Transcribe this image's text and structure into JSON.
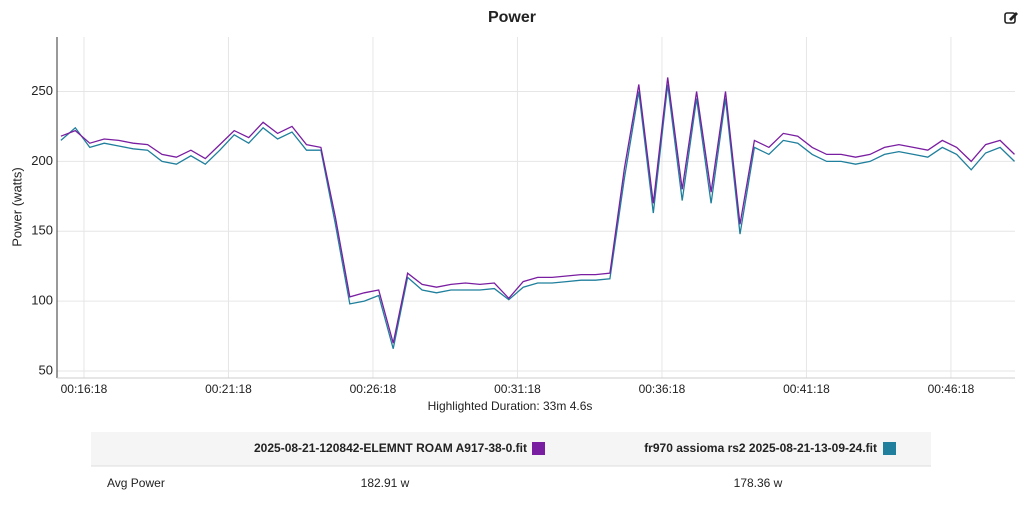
{
  "chart_data": {
    "type": "line",
    "title": "Power",
    "ylabel": "Power (watts)",
    "x_note": "Highlighted Duration: 33m 4.6s",
    "x": [
      "00:15:30",
      "00:16:00",
      "00:16:30",
      "00:17:00",
      "00:17:30",
      "00:18:00",
      "00:18:30",
      "00:19:00",
      "00:19:30",
      "00:20:00",
      "00:20:30",
      "00:21:00",
      "00:21:30",
      "00:22:00",
      "00:22:30",
      "00:23:00",
      "00:23:30",
      "00:24:00",
      "00:24:30",
      "00:25:00",
      "00:25:30",
      "00:26:00",
      "00:26:30",
      "00:27:00",
      "00:27:30",
      "00:28:00",
      "00:28:30",
      "00:29:00",
      "00:29:30",
      "00:30:00",
      "00:30:30",
      "00:31:00",
      "00:31:30",
      "00:32:00",
      "00:32:30",
      "00:33:00",
      "00:33:30",
      "00:34:00",
      "00:34:30",
      "00:35:00",
      "00:35:30",
      "00:36:00",
      "00:36:30",
      "00:37:00",
      "00:37:30",
      "00:38:00",
      "00:38:30",
      "00:39:00",
      "00:39:30",
      "00:40:00",
      "00:40:30",
      "00:41:00",
      "00:41:30",
      "00:42:00",
      "00:42:30",
      "00:43:00",
      "00:43:30",
      "00:44:00",
      "00:44:30",
      "00:45:00",
      "00:45:30",
      "00:46:00",
      "00:46:30",
      "00:47:00",
      "00:47:30",
      "00:48:00",
      "00:48:30"
    ],
    "series": [
      {
        "name": "2025-08-21-120842-ELEMNT ROAM A917-38-0.fit",
        "color": "#7a1ea1",
        "values": [
          218,
          222,
          213,
          216,
          215,
          213,
          212,
          205,
          203,
          208,
          202,
          212,
          222,
          217,
          228,
          220,
          225,
          212,
          210,
          160,
          103,
          106,
          108,
          70,
          120,
          112,
          110,
          112,
          113,
          112,
          113,
          102,
          114,
          117,
          117,
          118,
          119,
          119,
          120,
          195,
          255,
          170,
          260,
          180,
          250,
          178,
          250,
          155,
          215,
          210,
          220,
          218,
          210,
          205,
          205,
          203,
          205,
          210,
          212,
          210,
          208,
          215,
          210,
          200,
          212,
          215,
          205
        ]
      },
      {
        "name": "fr970 assioma rs2 2025-08-21-13-09-24.fit",
        "color": "#1f7f9c",
        "values": [
          215,
          224,
          210,
          213,
          211,
          209,
          208,
          200,
          198,
          204,
          198,
          208,
          219,
          213,
          224,
          216,
          221,
          208,
          208,
          155,
          98,
          100,
          104,
          66,
          117,
          108,
          106,
          108,
          108,
          108,
          109,
          101,
          110,
          113,
          113,
          114,
          115,
          115,
          116,
          188,
          250,
          163,
          255,
          172,
          245,
          170,
          245,
          148,
          210,
          205,
          215,
          213,
          205,
          200,
          200,
          198,
          200,
          205,
          207,
          205,
          203,
          210,
          205,
          194,
          206,
          210,
          200
        ]
      }
    ],
    "xlim": [
      "00:15:22",
      "00:48:31"
    ],
    "xticks": [
      "00:16:18",
      "00:21:18",
      "00:26:18",
      "00:31:18",
      "00:36:18",
      "00:41:18",
      "00:46:18"
    ],
    "ylim": [
      45,
      289
    ],
    "yticks": [
      50,
      100,
      150,
      200,
      250
    ],
    "grid": true
  },
  "table": {
    "metric": "Avg Power",
    "values": [
      "182.91 w",
      "178.36 w"
    ]
  }
}
